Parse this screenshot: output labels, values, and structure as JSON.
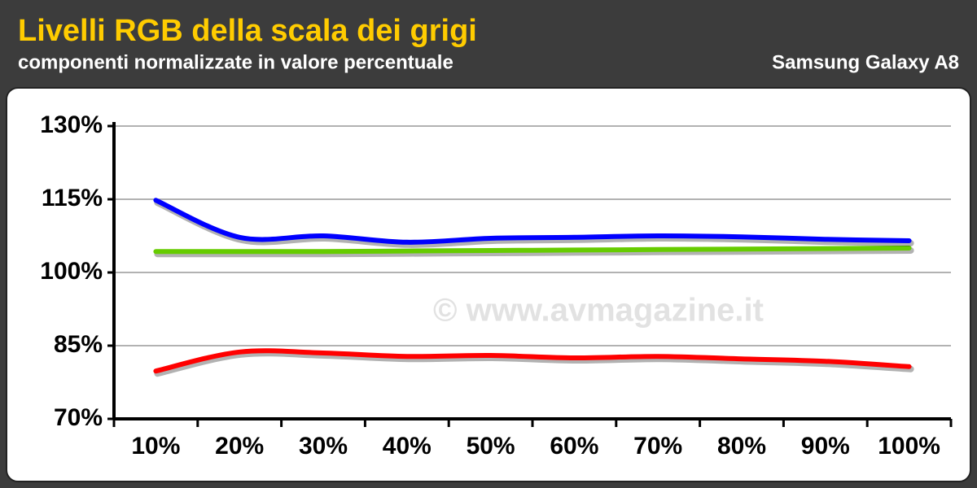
{
  "chart_data": {
    "type": "line",
    "title": "Livelli RGB della scala dei grigi",
    "subtitle": "componenti normalizzate in valore percentuale",
    "device": "Samsung Galaxy A8",
    "watermark": "© www.avmagazine.it",
    "categories": [
      "10%",
      "20%",
      "30%",
      "40%",
      "50%",
      "60%",
      "70%",
      "80%",
      "90%",
      "100%"
    ],
    "series": [
      {
        "color": "#ff0000",
        "values": [
          79.8,
          83.7,
          83.5,
          82.8,
          83.0,
          82.5,
          82.8,
          82.3,
          81.8,
          80.7
        ]
      },
      {
        "color": "#66cc00",
        "values": [
          104.3,
          104.3,
          104.3,
          104.4,
          104.5,
          104.6,
          104.7,
          104.8,
          104.9,
          105.0
        ]
      },
      {
        "color": "#0000ff",
        "values": [
          114.8,
          107.2,
          107.5,
          106.2,
          107.0,
          107.2,
          107.5,
          107.3,
          106.8,
          106.5
        ]
      }
    ],
    "ylim": [
      70,
      130
    ],
    "yticks": [
      {
        "value": 70,
        "label": "70%"
      },
      {
        "value": 85,
        "label": "85%"
      },
      {
        "value": 100,
        "label": "100%"
      },
      {
        "value": 115,
        "label": "115%"
      },
      {
        "value": 130,
        "label": "130%"
      }
    ],
    "grid": true
  }
}
